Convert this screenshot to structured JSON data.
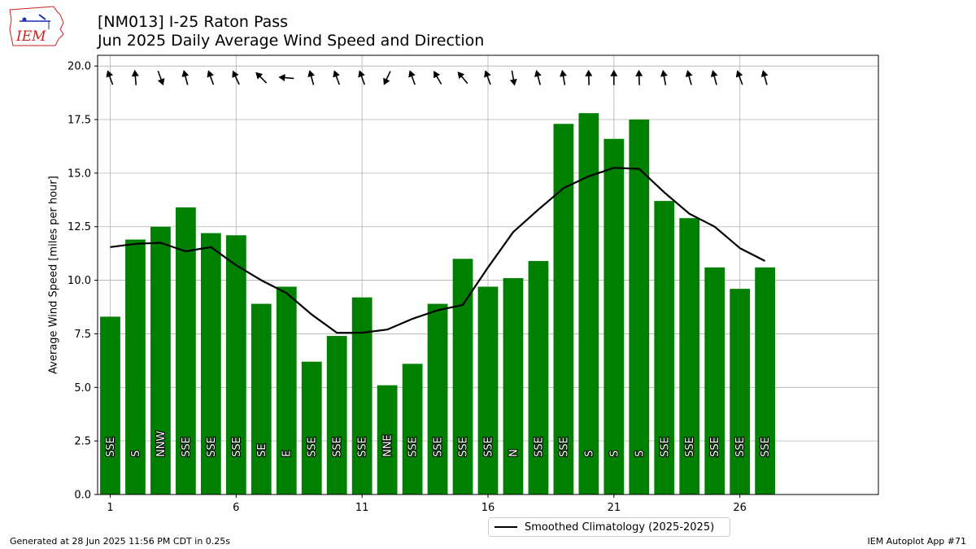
{
  "header": {
    "title_line1": "[NM013] I-25 Raton Pass",
    "title_line2": "Jun 2025 Daily Average Wind Speed and Direction",
    "logo_text": "IEM"
  },
  "footer": {
    "left": "Generated at 28 Jun 2025 11:56 PM CDT in 0.25s",
    "right": "IEM Autoplot App #71"
  },
  "legend": {
    "climatology_label": "Smoothed Climatology (2025-2025)"
  },
  "colors": {
    "bar": "#008000",
    "line": "#000000",
    "grid": "#b0b0b0",
    "logo_red": "#cc2222",
    "logo_blue": "#1a2fb0"
  },
  "chart_data": {
    "type": "bar",
    "ylabel": "Average Wind Speed [miles per hour]",
    "xlim": [
      0.5,
      31.5
    ],
    "ylim": [
      0,
      20.5
    ],
    "xticks": [
      1,
      6,
      11,
      16,
      21,
      26
    ],
    "yticks": [
      0.0,
      2.5,
      5.0,
      7.5,
      10.0,
      12.5,
      15.0,
      17.5,
      20.0
    ],
    "ytick_labels": [
      "0.0",
      "2.5",
      "5.0",
      "7.5",
      "10.0",
      "12.5",
      "15.0",
      "17.5",
      "20.0"
    ],
    "grid": true,
    "legend_position": "bottom-center",
    "days": [
      1,
      2,
      3,
      4,
      5,
      6,
      7,
      8,
      9,
      10,
      11,
      12,
      13,
      14,
      15,
      16,
      17,
      18,
      19,
      20,
      21,
      22,
      23,
      24,
      25,
      26,
      27
    ],
    "avg_speed": [
      8.3,
      11.9,
      12.5,
      13.4,
      12.2,
      12.1,
      8.9,
      9.7,
      6.2,
      7.4,
      9.2,
      5.1,
      6.1,
      8.9,
      11.0,
      9.7,
      10.1,
      10.9,
      17.3,
      17.8,
      16.6,
      17.5,
      13.7,
      12.9,
      10.6,
      9.6,
      10.6
    ],
    "direction_labels": [
      "SSE",
      "S",
      "NNW",
      "SSE",
      "SSE",
      "SSE",
      "SE",
      "E",
      "SSE",
      "SSE",
      "SSE",
      "NNE",
      "SSE",
      "SSE",
      "SSE",
      "SSE",
      "N",
      "SSE",
      "SSE",
      "S",
      "S",
      "S",
      "SSE",
      "SSE",
      "SSE",
      "SSE",
      "SSE"
    ],
    "direction_deg": [
      160,
      175,
      340,
      165,
      160,
      155,
      135,
      95,
      165,
      160,
      160,
      25,
      160,
      150,
      140,
      160,
      350,
      165,
      170,
      178,
      180,
      178,
      170,
      165,
      165,
      160,
      165
    ],
    "series": [
      {
        "name": "Smoothed Climatology (2025-2025)",
        "type": "line",
        "x": [
          1,
          2,
          3,
          4,
          5,
          6,
          7,
          8,
          9,
          10,
          11,
          12,
          13,
          14,
          15,
          16,
          17,
          18,
          19,
          20,
          21,
          22,
          23,
          24,
          25,
          26,
          27
        ],
        "values": [
          11.55,
          11.7,
          11.75,
          11.35,
          11.55,
          10.7,
          10.0,
          9.4,
          8.4,
          7.55,
          7.55,
          7.7,
          8.2,
          8.6,
          8.85,
          10.6,
          12.25,
          13.3,
          14.3,
          14.85,
          15.25,
          15.2,
          14.1,
          13.1,
          12.5,
          11.5,
          10.9
        ]
      }
    ]
  }
}
